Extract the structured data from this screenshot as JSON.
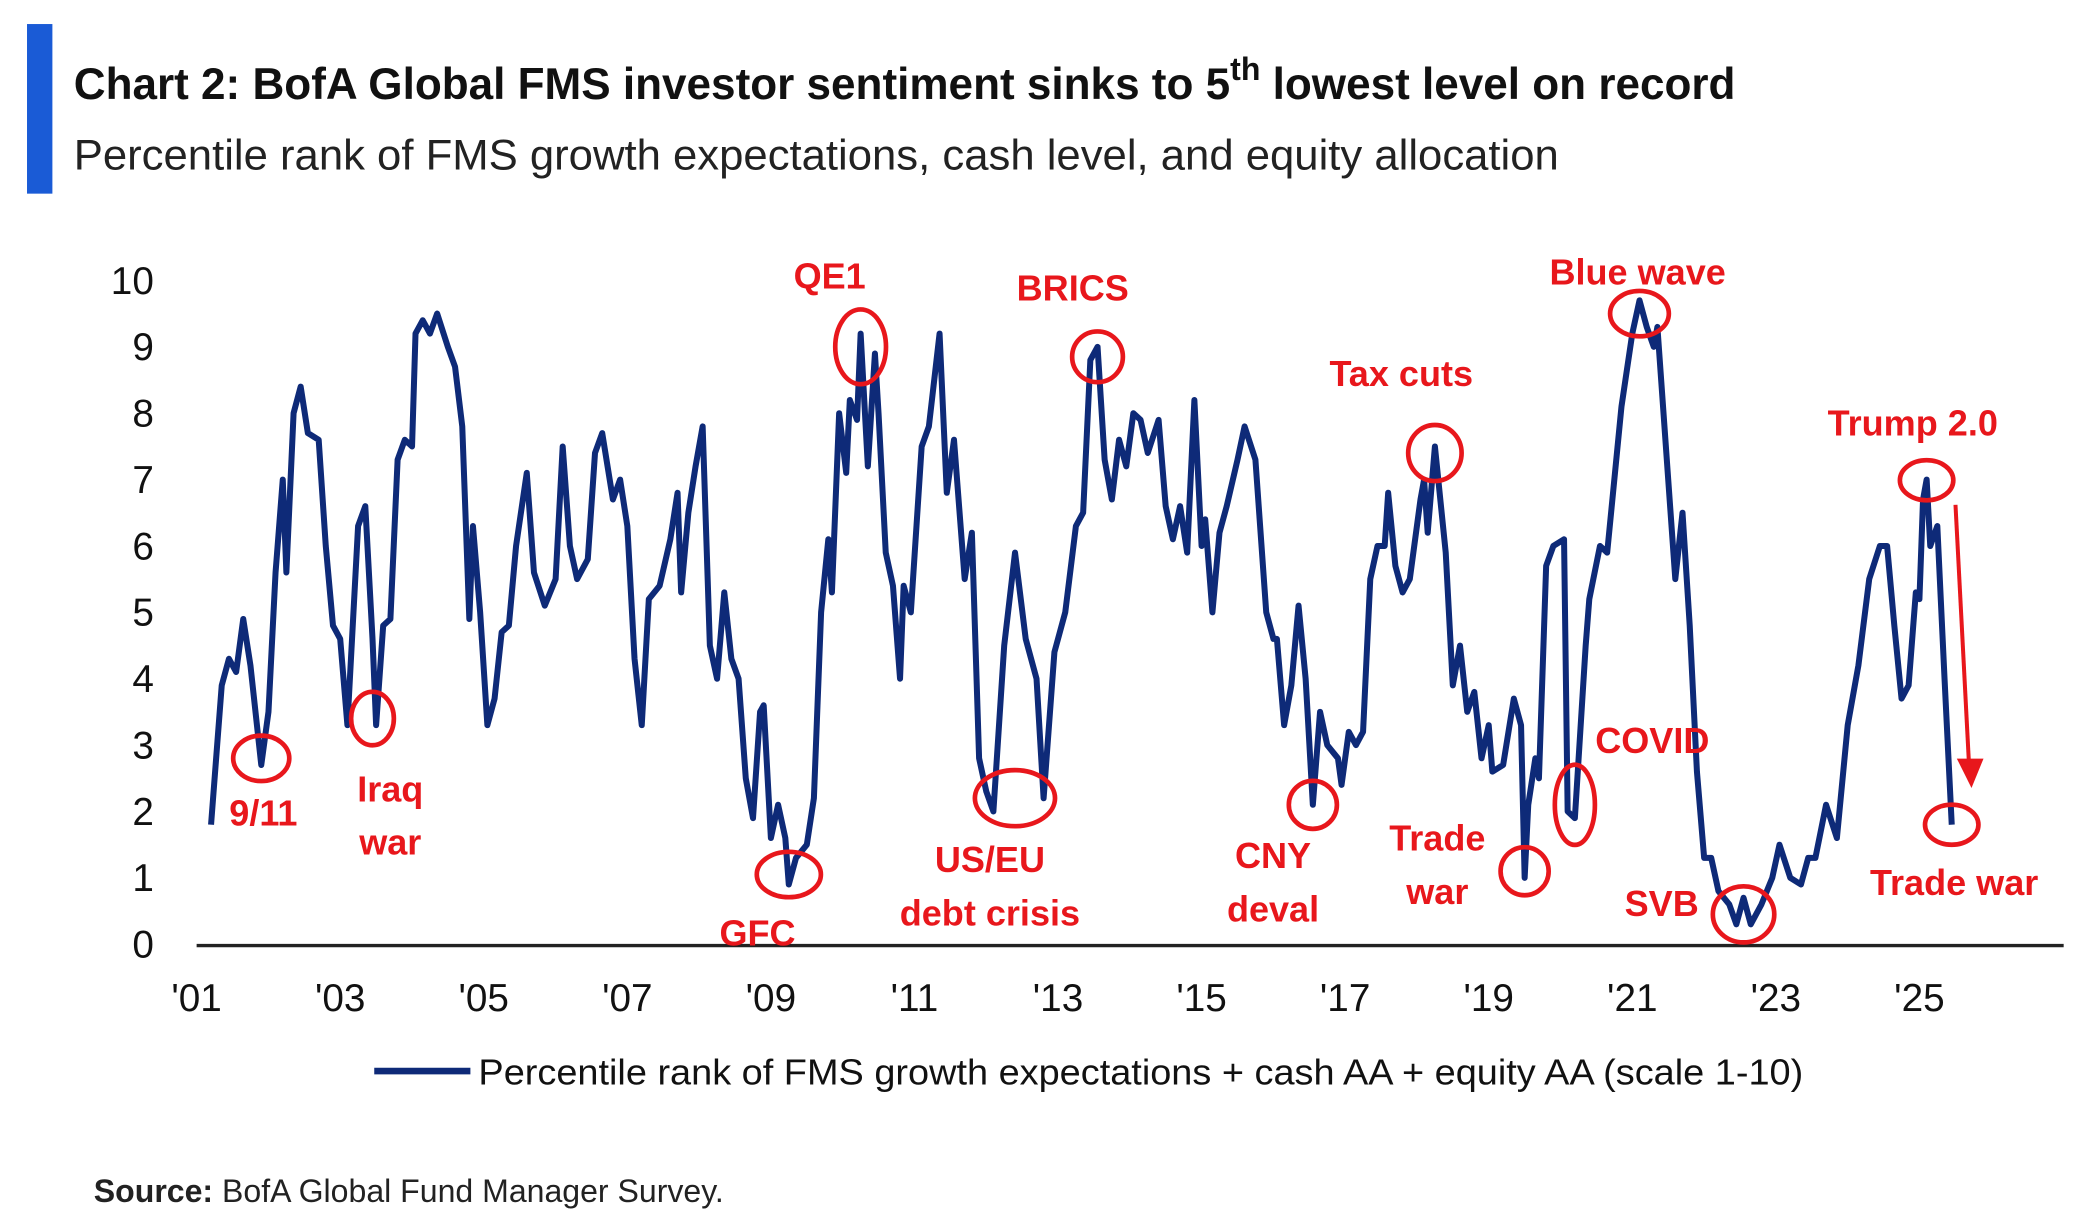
{
  "header": {
    "title_main": "Chart 2: BofA Global FMS investor sentiment sinks to 5",
    "title_sup": "th",
    "title_end": " lowest level on record",
    "subtitle": "Percentile rank of FMS growth expectations, cash level, and equity allocation"
  },
  "footer": {
    "source_label": "Source:",
    "source_text": " BofA Global Fund Manager Survey."
  },
  "colors": {
    "accent_bar": "#1a5bd6",
    "line": "#0e2a78",
    "annotation": "#e8171c"
  },
  "chart_data": {
    "type": "line",
    "title": "Chart 2: BofA Global FMS investor sentiment sinks to 5th lowest level on record",
    "xlabel": "",
    "ylabel": "",
    "xlim": [
      2001,
      2027
    ],
    "ylim": [
      0,
      10
    ],
    "grid": false,
    "legend_placement": "bottom",
    "y_ticks": [
      "0",
      "1",
      "2",
      "3",
      "4",
      "5",
      "6",
      "7",
      "8",
      "9",
      "10"
    ],
    "x_ticks": [
      {
        "year": 2001,
        "label": "'01"
      },
      {
        "year": 2003,
        "label": "'03"
      },
      {
        "year": 2005,
        "label": "'05"
      },
      {
        "year": 2007,
        "label": "'07"
      },
      {
        "year": 2009,
        "label": "'09"
      },
      {
        "year": 2011,
        "label": "'11"
      },
      {
        "year": 2013,
        "label": "'13"
      },
      {
        "year": 2015,
        "label": "'15"
      },
      {
        "year": 2017,
        "label": "'17"
      },
      {
        "year": 2019,
        "label": "'19"
      },
      {
        "year": 2021,
        "label": "'21"
      },
      {
        "year": 2023,
        "label": "'23"
      },
      {
        "year": 2025,
        "label": "'25"
      }
    ],
    "series": [
      {
        "name": "Percentile rank of FMS growth expectations + cash AA + equity AA (scale 1-10)",
        "x": [
          2001.2,
          2001.35,
          2001.45,
          2001.55,
          2001.65,
          2001.75,
          2001.85,
          2001.9,
          2002.0,
          2002.1,
          2002.2,
          2002.25,
          2002.35,
          2002.45,
          2002.55,
          2002.7,
          2002.8,
          2002.9,
          2003.0,
          2003.1,
          2003.25,
          2003.35,
          2003.45,
          2003.5,
          2003.6,
          2003.7,
          2003.8,
          2003.9,
          2004.0,
          2004.05,
          2004.15,
          2004.25,
          2004.35,
          2004.5,
          2004.6,
          2004.7,
          2004.8,
          2004.85,
          2004.95,
          2005.05,
          2005.15,
          2005.25,
          2005.35,
          2005.45,
          2005.6,
          2005.7,
          2005.85,
          2006.0,
          2006.1,
          2006.2,
          2006.3,
          2006.45,
          2006.55,
          2006.65,
          2006.8,
          2006.9,
          2007.0,
          2007.1,
          2007.2,
          2007.3,
          2007.45,
          2007.6,
          2007.7,
          2007.75,
          2007.85,
          2007.95,
          2008.05,
          2008.15,
          2008.25,
          2008.35,
          2008.45,
          2008.55,
          2008.65,
          2008.75,
          2008.85,
          2008.9,
          2009.0,
          2009.1,
          2009.2,
          2009.25,
          2009.35,
          2009.5,
          2009.6,
          2009.7,
          2009.8,
          2009.85,
          2009.95,
          2010.05,
          2010.1,
          2010.2,
          2010.25,
          2010.35,
          2010.45,
          2010.5,
          2010.6,
          2010.7,
          2010.8,
          2010.85,
          2010.95,
          2011.1,
          2011.2,
          2011.35,
          2011.45,
          2011.55,
          2011.7,
          2011.8,
          2011.9,
          2012.0,
          2012.1,
          2012.25,
          2012.4,
          2012.55,
          2012.7,
          2012.8,
          2012.95,
          2013.1,
          2013.25,
          2013.35,
          2013.45,
          2013.55,
          2013.65,
          2013.75,
          2013.85,
          2013.95,
          2014.05,
          2014.15,
          2014.25,
          2014.4,
          2014.5,
          2014.6,
          2014.7,
          2014.8,
          2014.9,
          2015.0,
          2015.05,
          2015.15,
          2015.25,
          2015.35,
          2015.5,
          2015.6,
          2015.75,
          2015.9,
          2016.0,
          2016.05,
          2016.15,
          2016.25,
          2016.35,
          2016.45,
          2016.55,
          2016.65,
          2016.75,
          2016.9,
          2016.95,
          2017.05,
          2017.15,
          2017.25,
          2017.35,
          2017.45,
          2017.55,
          2017.6,
          2017.7,
          2017.8,
          2017.9,
          2018.05,
          2018.1,
          2018.15,
          2018.25,
          2018.4,
          2018.5,
          2018.6,
          2018.7,
          2018.8,
          2018.9,
          2019.0,
          2019.05,
          2019.2,
          2019.35,
          2019.45,
          2019.5,
          2019.55,
          2019.65,
          2019.7,
          2019.8,
          2019.9,
          2020.05,
          2020.1,
          2020.2,
          2020.35,
          2020.4,
          2020.55,
          2020.65,
          2020.85,
          2021.0,
          2021.1,
          2021.2,
          2021.3,
          2021.35,
          2021.5,
          2021.6,
          2021.7,
          2021.8,
          2021.9,
          2022.0,
          2022.1,
          2022.2,
          2022.35,
          2022.45,
          2022.55,
          2022.65,
          2022.8,
          2022.95,
          2023.05,
          2023.2,
          2023.35,
          2023.45,
          2023.55,
          2023.7,
          2023.85,
          2024.0,
          2024.15,
          2024.3,
          2024.45,
          2024.55,
          2024.65,
          2024.75,
          2024.85,
          2024.95,
          2025.0,
          2025.05,
          2025.1,
          2025.15,
          2025.25,
          2025.35,
          2025.45
        ],
        "y": [
          1.8,
          3.9,
          4.3,
          4.1,
          4.9,
          4.2,
          3.2,
          2.7,
          3.5,
          5.6,
          7.0,
          5.6,
          8.0,
          8.4,
          7.7,
          7.6,
          6.0,
          4.8,
          4.6,
          3.3,
          6.3,
          6.6,
          4.6,
          3.3,
          4.8,
          4.9,
          7.3,
          7.6,
          7.5,
          9.2,
          9.4,
          9.2,
          9.5,
          9.0,
          8.7,
          7.8,
          4.9,
          6.3,
          5.0,
          3.3,
          3.7,
          4.7,
          4.8,
          6.0,
          7.1,
          5.6,
          5.1,
          5.5,
          7.5,
          6.0,
          5.5,
          5.8,
          7.4,
          7.7,
          6.7,
          7.0,
          6.3,
          4.3,
          3.3,
          5.2,
          5.4,
          6.1,
          6.8,
          5.3,
          6.5,
          7.2,
          7.8,
          4.5,
          4.0,
          5.3,
          4.3,
          4.0,
          2.5,
          1.9,
          3.5,
          3.6,
          1.6,
          2.1,
          1.6,
          0.9,
          1.3,
          1.5,
          2.2,
          5.0,
          6.1,
          5.3,
          8.0,
          7.1,
          8.2,
          7.9,
          9.2,
          7.2,
          8.9,
          8.0,
          5.9,
          5.4,
          4.0,
          5.4,
          5.0,
          7.5,
          7.8,
          9.2,
          6.8,
          7.6,
          5.5,
          6.2,
          2.8,
          2.3,
          2.0,
          4.5,
          5.9,
          4.6,
          4.0,
          2.2,
          4.4,
          5.0,
          6.3,
          6.5,
          8.8,
          9.0,
          7.3,
          6.7,
          7.6,
          7.2,
          8.0,
          7.9,
          7.4,
          7.9,
          6.6,
          6.1,
          6.6,
          5.9,
          8.2,
          6.0,
          6.4,
          5.0,
          6.2,
          6.6,
          7.3,
          7.8,
          7.3,
          5.0,
          4.6,
          4.6,
          3.3,
          3.9,
          5.1,
          4.0,
          2.1,
          3.5,
          3.0,
          2.8,
          2.4,
          3.2,
          3.0,
          3.2,
          5.5,
          6.0,
          6.0,
          6.8,
          5.7,
          5.3,
          5.5,
          6.7,
          7.0,
          6.2,
          7.5,
          5.9,
          3.9,
          4.5,
          3.5,
          3.8,
          2.8,
          3.3,
          2.6,
          2.7,
          3.7,
          3.3,
          1.0,
          2.1,
          2.8,
          2.5,
          5.7,
          6.0,
          6.1,
          2.0,
          1.9,
          4.5,
          5.2,
          6.0,
          5.9,
          8.1,
          9.2,
          9.7,
          9.3,
          9.0,
          9.3,
          7.0,
          5.5,
          6.5,
          4.8,
          2.6,
          1.3,
          1.3,
          0.8,
          0.6,
          0.3,
          0.7,
          0.3,
          0.6,
          1.0,
          1.5,
          1.0,
          0.9,
          1.3,
          1.3,
          2.1,
          1.6,
          3.3,
          4.2,
          5.5,
          6.0,
          6.0,
          4.8,
          3.7,
          3.9,
          5.3,
          5.2,
          6.7,
          7.0,
          6.0,
          6.3,
          4.0,
          1.8
        ]
      }
    ],
    "annotations": [
      {
        "label": [
          "9/11"
        ],
        "year": 2001.9,
        "value": 2.8
      },
      {
        "label": [
          "Iraq",
          "war"
        ],
        "year": 2003.45,
        "value": 3.4
      },
      {
        "label": [
          "GFC"
        ],
        "year": 2009.25,
        "value": 1.05
      },
      {
        "label": [
          "QE1"
        ],
        "year": 2010.25,
        "value": 9.0
      },
      {
        "label": [
          "US/EU",
          "debt crisis"
        ],
        "year": 2012.4,
        "value": 2.2
      },
      {
        "label": [
          "BRICS"
        ],
        "year": 2013.55,
        "value": 8.85
      },
      {
        "label": [
          "CNY",
          "deval"
        ],
        "year": 2016.55,
        "value": 2.1
      },
      {
        "label": [
          "Tax cuts"
        ],
        "year": 2018.25,
        "value": 7.4
      },
      {
        "label": [
          "Trade",
          "war"
        ],
        "year": 2019.5,
        "value": 1.1
      },
      {
        "label": [
          "COVID"
        ],
        "year": 2020.2,
        "value": 2.1
      },
      {
        "label": [
          "Blue wave"
        ],
        "year": 2021.1,
        "value": 9.5
      },
      {
        "label": [
          "SVB"
        ],
        "year": 2022.55,
        "value": 0.45
      },
      {
        "label": [
          "Trump 2.0"
        ],
        "year": 2025.1,
        "value": 6.99
      },
      {
        "label": [
          "Trade war"
        ],
        "year": 2025.45,
        "value": 1.8
      }
    ]
  }
}
